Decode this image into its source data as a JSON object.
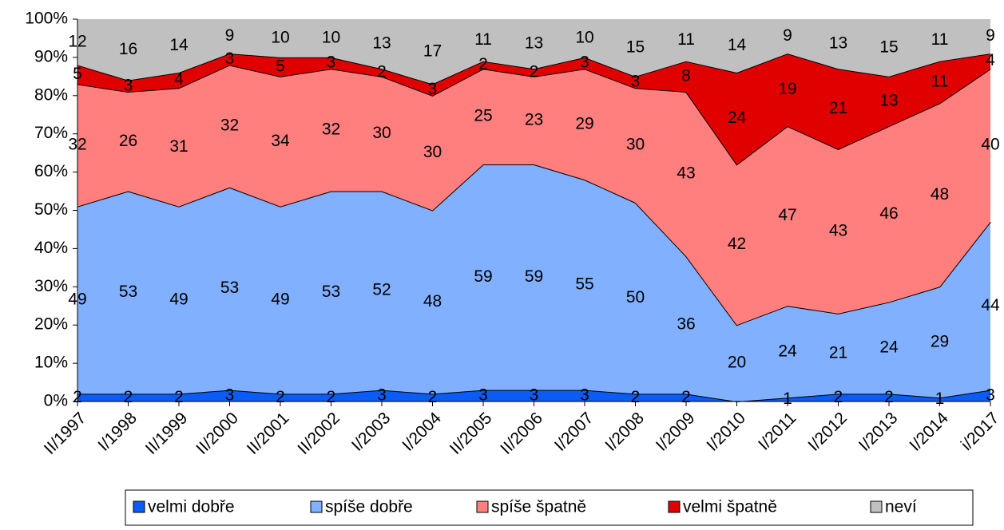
{
  "chart_data": {
    "type": "stacked-area",
    "categories": [
      "II/1997",
      "I/1998",
      "II/1999",
      "II/2000",
      "II/2001",
      "II/2002",
      "I/2003",
      "I/2004",
      "II/2005",
      "II/2006",
      "I/2007",
      "I/2008",
      "I/2009",
      "I/2010",
      "I/2011",
      "I/2012",
      "I/2013",
      "I/2014",
      "i/2017"
    ],
    "series": [
      {
        "name": "velmi dobře",
        "color": "#0a5cf5",
        "values": [
          2,
          2,
          2,
          3,
          2,
          2,
          3,
          2,
          3,
          3,
          3,
          2,
          2,
          0,
          1,
          2,
          2,
          1,
          3
        ]
      },
      {
        "name": "spíše dobře",
        "color": "#80b0ff",
        "values": [
          49,
          53,
          49,
          53,
          49,
          53,
          52,
          48,
          59,
          59,
          55,
          50,
          36,
          20,
          24,
          21,
          24,
          29,
          44
        ]
      },
      {
        "name": "spíše špatně",
        "color": "#ff7f7f",
        "values": [
          32,
          26,
          31,
          32,
          34,
          32,
          30,
          30,
          25,
          23,
          29,
          30,
          43,
          42,
          47,
          43,
          46,
          48,
          40
        ]
      },
      {
        "name": "velmi špatně",
        "color": "#e00000",
        "values": [
          5,
          3,
          4,
          3,
          5,
          3,
          2,
          3,
          2,
          2,
          3,
          3,
          8,
          24,
          19,
          21,
          13,
          11,
          4
        ]
      },
      {
        "name": "neví",
        "color": "#c0c0c0",
        "values": [
          12,
          16,
          14,
          9,
          10,
          10,
          13,
          17,
          11,
          13,
          10,
          15,
          11,
          14,
          9,
          13,
          15,
          11,
          9
        ]
      }
    ],
    "ylim": [
      0,
      100
    ],
    "yticks": [
      {
        "value": 0,
        "label": "0%"
      },
      {
        "value": 10,
        "label": "10%"
      },
      {
        "value": 20,
        "label": "20%"
      },
      {
        "value": 30,
        "label": "30%"
      },
      {
        "value": 40,
        "label": "40%"
      },
      {
        "value": 50,
        "label": "50%"
      },
      {
        "value": 60,
        "label": "60%"
      },
      {
        "value": 70,
        "label": "70%"
      },
      {
        "value": 80,
        "label": "80%"
      },
      {
        "value": 90,
        "label": "90%"
      },
      {
        "value": 100,
        "label": "100%"
      }
    ],
    "legend": "bottom"
  }
}
